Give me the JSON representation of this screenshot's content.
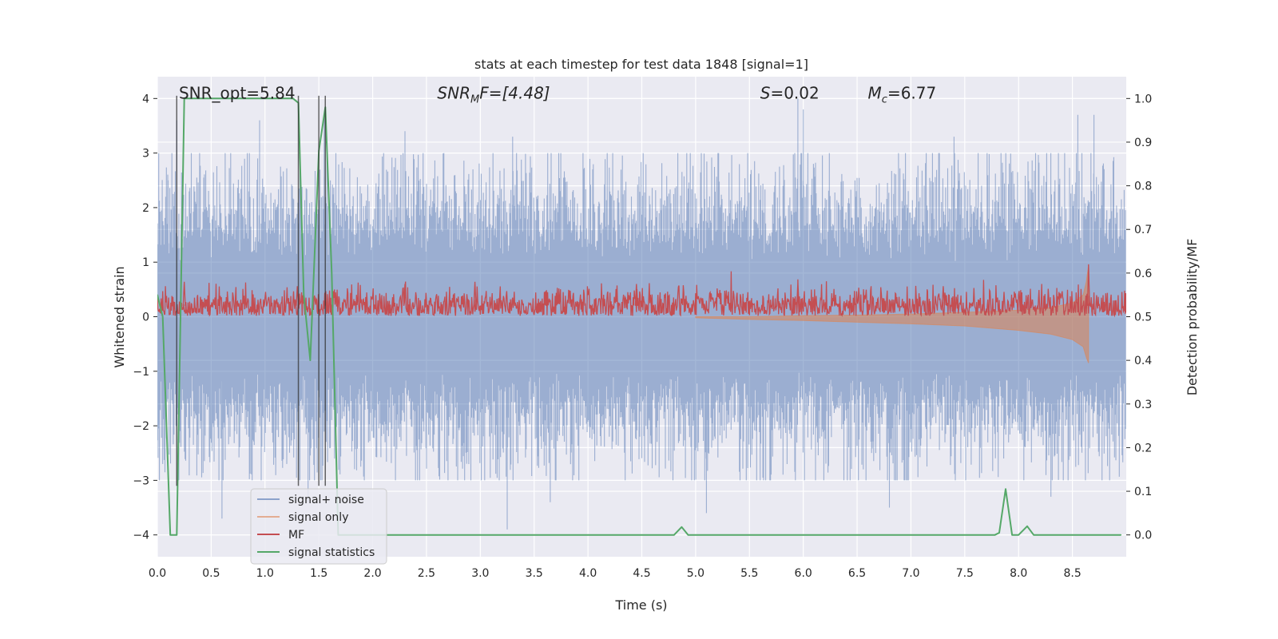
{
  "chart_data": {
    "type": "line",
    "title": "stats at each timestep for test data 1848 [signal=1]",
    "xlabel": "Time (s)",
    "ylabel_left": "Whitened strain",
    "ylabel_right": "Detection probability/MF",
    "xlim": [
      0,
      9.0
    ],
    "ylim_left": [
      -4.4,
      4.4
    ],
    "ylim_right": [
      -0.05,
      1.05
    ],
    "x_ticks": [
      0.0,
      0.5,
      1.0,
      1.5,
      2.0,
      2.5,
      3.0,
      3.5,
      4.0,
      4.5,
      5.0,
      5.5,
      6.0,
      6.5,
      7.0,
      7.5,
      8.0,
      8.5
    ],
    "x_tick_labels": [
      "0.0",
      "0.5",
      "1.0",
      "1.5",
      "2.0",
      "2.5",
      "3.0",
      "3.5",
      "4.0",
      "4.5",
      "5.0",
      "5.5",
      "6.0",
      "6.5",
      "7.0",
      "7.5",
      "8.0",
      "8.5"
    ],
    "y_left_ticks": [
      -4,
      -3,
      -2,
      -1,
      0,
      1,
      2,
      3,
      4
    ],
    "y_left_tick_labels": [
      "−4",
      "−3",
      "−2",
      "−1",
      "0",
      "1",
      "2",
      "3",
      "4"
    ],
    "y_right_ticks": [
      0.0,
      0.1,
      0.2,
      0.3,
      0.4,
      0.5,
      0.6,
      0.7,
      0.8,
      0.9,
      1.0
    ],
    "y_right_tick_labels": [
      "0.0",
      "0.1",
      "0.2",
      "0.3",
      "0.4",
      "0.5",
      "0.6",
      "0.7",
      "0.8",
      "0.9",
      "1.0"
    ],
    "grid": true,
    "legend_position": "lower-left",
    "annotations": {
      "snr_opt": "SNR_opt=5.84",
      "snr_mf_sym": "SNR",
      "snr_mf_sub": "M",
      "snr_mf_val": "F=[4.48]",
      "s_sym": "S",
      "s_val": "=0.02",
      "mc_sym": "M",
      "mc_sub": "c",
      "mc_val": "=6.77"
    },
    "annotation_x": {
      "snr_opt": 0.2,
      "snr_mf": 2.6,
      "s": 5.6,
      "mc": 6.6
    },
    "annotation_y": 4.1,
    "vertical_lines_x": [
      0.18,
      1.31,
      1.5,
      1.56
    ],
    "series": [
      {
        "name": "signal+ noise",
        "axis": "left",
        "color": "#4c72b0",
        "kind": "noise_envelope",
        "noise_sigma": 0.85,
        "spike_max": [
          [
            0.1,
            2.5
          ],
          [
            0.18,
            3.6
          ],
          [
            0.95,
            3.6
          ],
          [
            1.55,
            3.7
          ],
          [
            2.3,
            3.4
          ],
          [
            3.3,
            3.3
          ],
          [
            5.95,
            4.0
          ],
          [
            6.0,
            3.8
          ],
          [
            7.4,
            3.3
          ],
          [
            8.55,
            3.7
          ],
          [
            8.7,
            3.7
          ]
        ],
        "spike_min": [
          [
            0.05,
            -2.7
          ],
          [
            0.6,
            -3.7
          ],
          [
            1.4,
            -3.4
          ],
          [
            3.25,
            -3.9
          ],
          [
            3.65,
            -3.4
          ],
          [
            5.1,
            -3.6
          ],
          [
            6.8,
            -3.5
          ],
          [
            8.3,
            -3.3
          ]
        ]
      },
      {
        "name": "signal only",
        "axis": "left",
        "color": "#dd8452",
        "kind": "chirp",
        "x": [
          5.0,
          5.5,
          6.0,
          6.5,
          7.0,
          7.5,
          8.0,
          8.3,
          8.5,
          8.6,
          8.63,
          8.65
        ],
        "y_lower": [
          -0.02,
          -0.05,
          -0.07,
          -0.1,
          -0.13,
          -0.17,
          -0.25,
          -0.32,
          -0.42,
          -0.55,
          -0.75,
          -0.85
        ],
        "y_upper": [
          0.0,
          0.0,
          0.02,
          0.03,
          0.05,
          0.08,
          0.12,
          0.17,
          0.25,
          0.4,
          0.65,
          0.95
        ]
      },
      {
        "name": "MF",
        "axis": "right",
        "color": "#c44e52",
        "kind": "noisy_band",
        "base": 0.525,
        "amplitude": 0.03,
        "peaks": [
          [
            0.25,
            0.58
          ],
          [
            1.3,
            0.57
          ],
          [
            2.3,
            0.575
          ],
          [
            2.95,
            0.58
          ],
          [
            4.45,
            0.575
          ],
          [
            5.95,
            0.58
          ],
          [
            7.3,
            0.57
          ],
          [
            8.65,
            0.62
          ]
        ]
      },
      {
        "name": "signal statistics",
        "axis": "right",
        "color": "#55a868",
        "kind": "line",
        "x": [
          0.0,
          0.05,
          0.12,
          0.18,
          0.25,
          0.3,
          0.5,
          1.0,
          1.26,
          1.31,
          1.36,
          1.42,
          1.5,
          1.56,
          1.62,
          1.68,
          1.74,
          2.0,
          3.0,
          4.0,
          4.5,
          4.8,
          4.87,
          4.93,
          5.0,
          6.0,
          7.0,
          7.5,
          7.78,
          7.82,
          7.88,
          7.94,
          8.0,
          8.08,
          8.14,
          8.5,
          8.95
        ],
        "y": [
          0.55,
          0.5,
          0.0,
          0.0,
          1.0,
          1.0,
          1.0,
          1.0,
          1.0,
          0.99,
          0.55,
          0.4,
          0.88,
          0.98,
          0.6,
          0.0,
          0.0,
          0.0,
          0.0,
          0.0,
          0.0,
          0.0,
          0.018,
          0.0,
          0.0,
          0.0,
          0.0,
          0.0,
          0.0,
          0.005,
          0.105,
          0.0,
          0.0,
          0.02,
          0.0,
          0.0,
          0.0
        ]
      }
    ]
  }
}
